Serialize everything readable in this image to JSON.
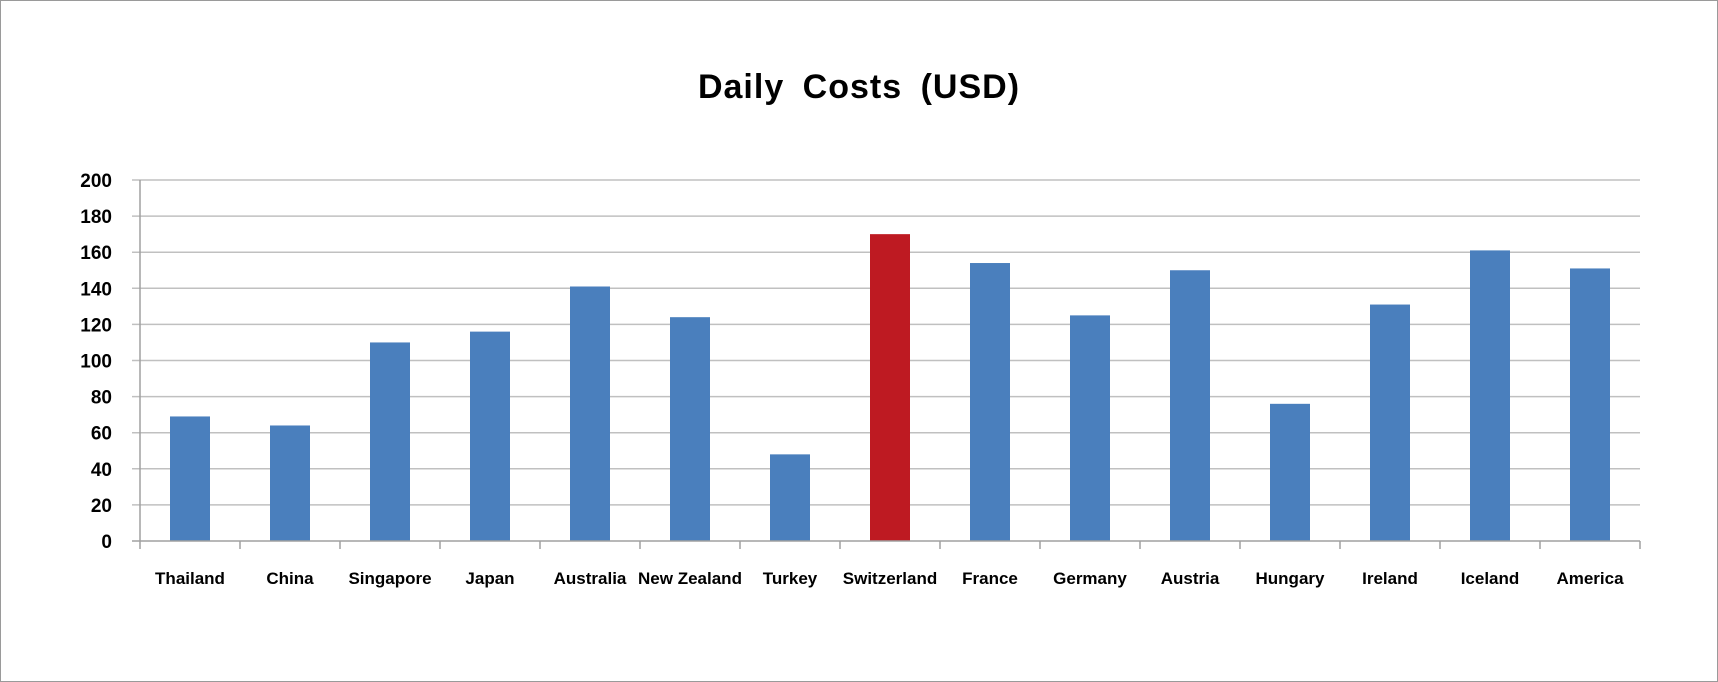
{
  "chart_data": {
    "type": "bar",
    "title": "Daily  Costs  (USD)",
    "xlabel": "",
    "ylabel": "",
    "ylim": [
      0,
      200
    ],
    "yticks": [
      "0",
      "20",
      "40",
      "60",
      "80",
      "100",
      "120",
      "140",
      "160",
      "180",
      "200"
    ],
    "grid": true,
    "legend": "none",
    "categories": [
      "Thailand",
      "China",
      "Singapore",
      "Japan",
      "Australia",
      "New Zealand",
      "Turkey",
      "Switzerland",
      "France",
      "Germany",
      "Austria",
      "Hungary",
      "Ireland",
      "Iceland",
      "America"
    ],
    "values": [
      69,
      64,
      110,
      116,
      141,
      124,
      48,
      170,
      154,
      125,
      150,
      76,
      131,
      161,
      151
    ],
    "colors": {
      "default_bar": "#4a7fbd",
      "highlight_bar": "#be1a22",
      "gridline": "#c0c0c0",
      "axis": "#a0a0a0"
    },
    "highlight_category": "Switzerland"
  }
}
